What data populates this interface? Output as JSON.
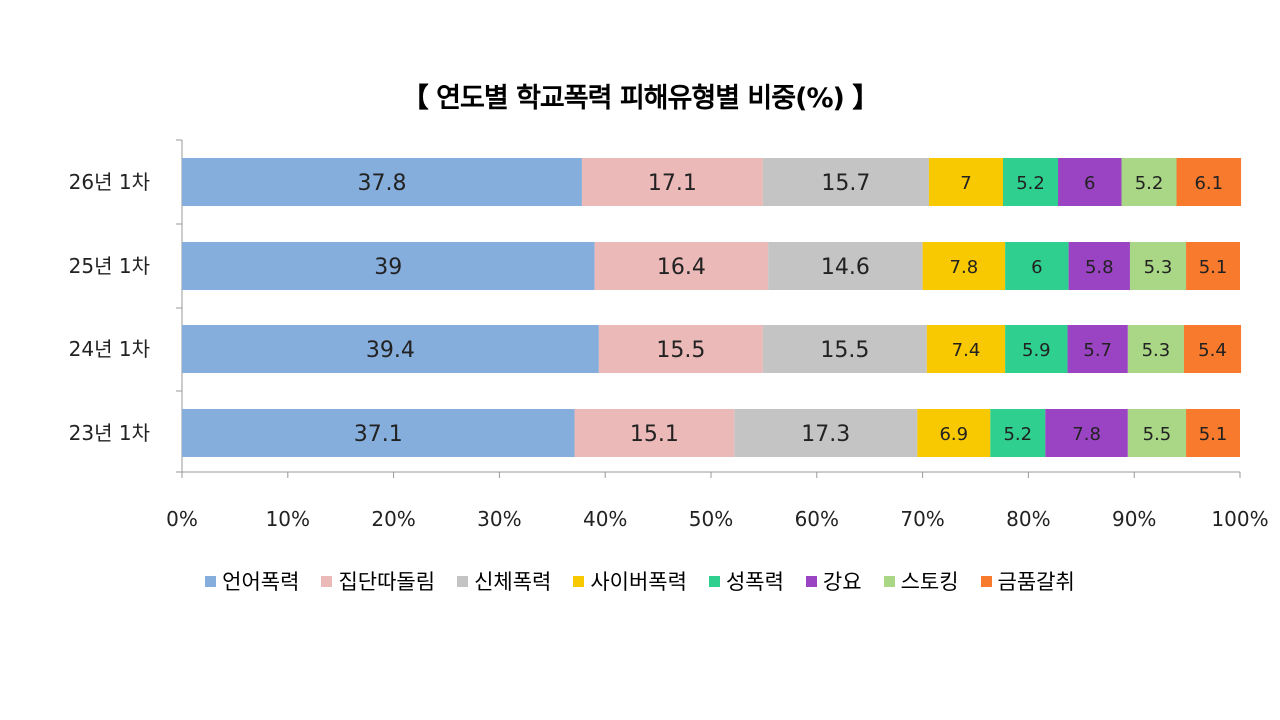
{
  "chart_data": {
    "type": "bar",
    "orientation": "horizontal",
    "stacked": "percent",
    "title": "【 연도별 학교폭력 피해유형별 비중(%) 】",
    "categories": [
      "26년 1차",
      "25년 1차",
      "24년 1차",
      "23년 1차"
    ],
    "xlim": [
      0,
      100
    ],
    "x_ticks": [
      "0%",
      "10%",
      "20%",
      "30%",
      "40%",
      "50%",
      "60%",
      "70%",
      "80%",
      "90%",
      "100%"
    ],
    "grid": false,
    "legend": "bottom",
    "series": [
      {
        "name": "언어폭력",
        "color": "#86aedd",
        "values": [
          37.8,
          39,
          39.4,
          37.1
        ]
      },
      {
        "name": "집단따돌림",
        "color": "#ebb9b8",
        "values": [
          17.1,
          16.4,
          15.5,
          15.1
        ]
      },
      {
        "name": "신체폭력",
        "color": "#c4c4c4",
        "values": [
          15.7,
          14.6,
          15.5,
          17.3
        ]
      },
      {
        "name": "사이버폭력",
        "color": "#f8c800",
        "values": [
          7,
          7.8,
          7.4,
          6.9
        ]
      },
      {
        "name": "성폭력",
        "color": "#2ecf8f",
        "values": [
          5.2,
          6,
          5.9,
          5.2
        ]
      },
      {
        "name": "강요",
        "color": "#9a44c3",
        "values": [
          6,
          5.8,
          5.7,
          7.8
        ]
      },
      {
        "name": "스토킹",
        "color": "#a9d786",
        "values": [
          5.2,
          5.3,
          5.3,
          5.5
        ]
      },
      {
        "name": "금품갈취",
        "color": "#f77a2d",
        "values": [
          6.1,
          5.1,
          5.4,
          5.1
        ]
      }
    ]
  }
}
